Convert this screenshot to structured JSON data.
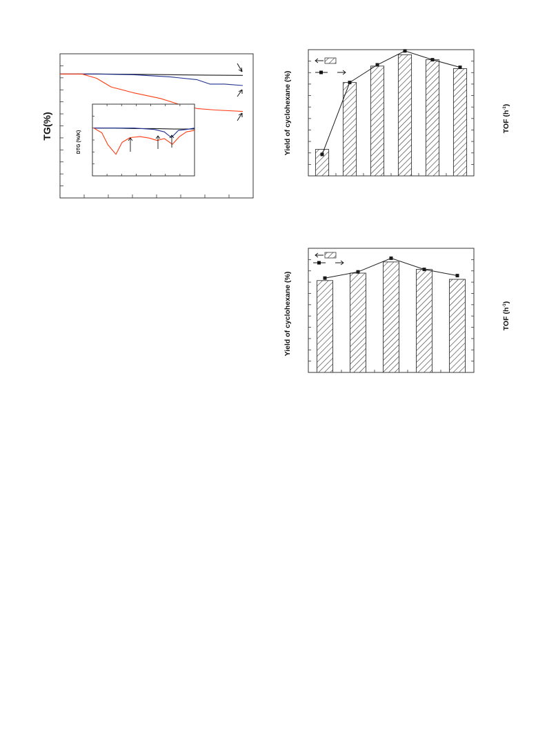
{
  "colors": {
    "black": "#1a1a1a",
    "blue": "#1f2f8f",
    "red": "#ff3a10",
    "frame": "#333333"
  },
  "tg_panel": {
    "ylabel": "TG(%)",
    "inset_ylabel": "DTG (%/K)"
  },
  "yield_panel_top": {
    "ylabel": "Yield of cyclohexane (%)",
    "y2label_main": "TOF",
    "y2label_unit": "(h",
    "y2label_sup": "-1",
    "y2label_close": ")"
  },
  "yield_panel_bottom": {
    "ylabel": "Yield of cyclohexane (%)",
    "y2label_main": "TOF",
    "y2label_unit": "(h",
    "y2label_sup": "-1",
    "y2label_close": ")"
  },
  "chart_data": [
    {
      "type": "line",
      "panel": "tg",
      "xlim": [
        0,
        100
      ],
      "ylim": [
        0,
        100
      ],
      "series": [
        {
          "color": "black",
          "x": [
            0,
            20,
            40,
            60,
            80,
            100
          ],
          "y": [
            86,
            86,
            85.8,
            85.5,
            85.2,
            85
          ]
        },
        {
          "color": "blue",
          "x": [
            0,
            20,
            40,
            60,
            75,
            82,
            90,
            100
          ],
          "y": [
            86,
            86,
            85.5,
            84,
            82,
            79,
            79,
            78
          ]
        },
        {
          "color": "red",
          "x": [
            0,
            12,
            20,
            28,
            40,
            55,
            65,
            75,
            85,
            100
          ],
          "y": [
            86,
            86,
            83,
            77,
            73,
            69,
            65,
            62,
            61,
            60
          ]
        }
      ]
    },
    {
      "type": "line",
      "panel": "dtg-inset",
      "xlim": [
        0,
        100
      ],
      "ylim": [
        -10,
        5
      ],
      "series": [
        {
          "color": "black",
          "x": [
            0,
            20,
            40,
            60,
            80,
            100
          ],
          "y": [
            0,
            0,
            -0.1,
            -0.1,
            -0.2,
            -0.2
          ]
        },
        {
          "color": "blue",
          "x": [
            0,
            20,
            40,
            60,
            70,
            77,
            84,
            92,
            100
          ],
          "y": [
            0,
            0,
            0,
            -0.3,
            -0.8,
            -2,
            -0.5,
            -0.3,
            0
          ]
        },
        {
          "color": "red",
          "x": [
            0,
            8,
            14,
            22,
            28,
            36,
            46,
            55,
            63,
            70,
            78,
            85,
            92,
            100
          ],
          "y": [
            0,
            -1,
            -3.5,
            -5.5,
            -3,
            -2,
            -1.8,
            -2.1,
            -2.6,
            -2.2,
            -3.4,
            -1.8,
            -0.8,
            -0.5
          ]
        }
      ]
    },
    {
      "type": "bar",
      "panel": "yield-top",
      "ylim": [
        0,
        100
      ],
      "y2lim": [
        0,
        100
      ],
      "values": [
        21,
        74,
        87,
        96,
        92,
        85
      ],
      "line_values": [
        17,
        74,
        88,
        99,
        92,
        86
      ]
    },
    {
      "type": "bar",
      "panel": "yield-bottom",
      "ylim": [
        0,
        100
      ],
      "y2lim": [
        0,
        100
      ],
      "values": [
        74,
        80,
        89,
        83,
        75
      ],
      "line_values": [
        76,
        81,
        92,
        83,
        78
      ]
    }
  ]
}
